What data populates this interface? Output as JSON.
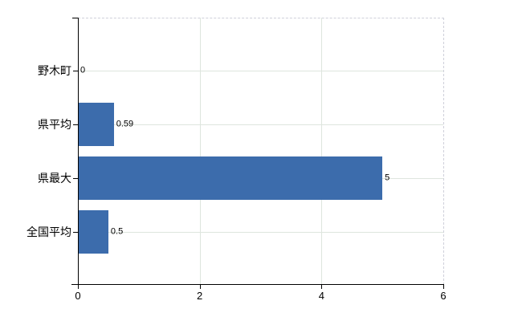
{
  "chart_data": {
    "type": "bar",
    "orientation": "horizontal",
    "categories": [
      "野木町",
      "県平均",
      "県最大",
      "全国平均"
    ],
    "values": [
      0,
      0.59,
      5,
      0.5
    ],
    "value_labels": [
      "0",
      "0.59",
      "5",
      "0.5"
    ],
    "x_ticks": [
      "0",
      "2",
      "4",
      "6"
    ],
    "x_tick_values": [
      0,
      2,
      4,
      6
    ],
    "xlim": [
      0,
      6
    ],
    "xlabel": "",
    "ylabel": "",
    "grid": true,
    "legend": false,
    "bar_color": "#3c6cac",
    "gridline_color": "#dee5de",
    "dashed_border_color": "#cfd0da",
    "axis_color": "#000000",
    "text_color": "#000000",
    "background_color": "#ffffff"
  }
}
